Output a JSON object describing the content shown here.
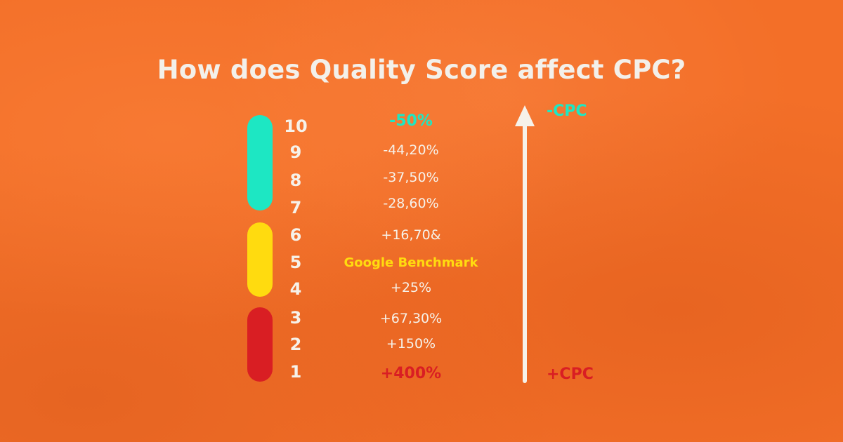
{
  "title": "How does Quality Score affect CPC?",
  "colors": {
    "background": "#f36f28",
    "green": "#1de7c3",
    "yellow": "#ffdb0f",
    "red": "#d91e23",
    "text": "#f6f2ea",
    "arrow": "#f6f2ea"
  },
  "groups": [
    {
      "name": "green-pill",
      "color": "#1de7c3",
      "scores": [
        10,
        9,
        8,
        7
      ]
    },
    {
      "name": "yellow-pill",
      "color": "#ffdb0f",
      "scores": [
        6,
        5,
        4
      ]
    },
    {
      "name": "red-pill",
      "color": "#d91e23",
      "scores": [
        3,
        2,
        1
      ]
    }
  ],
  "rows": [
    {
      "score": "10",
      "change": "-50%",
      "highlight_color": "#1de7c3"
    },
    {
      "score": "9",
      "change": "-44,20%"
    },
    {
      "score": "8",
      "change": "-37,50%"
    },
    {
      "score": "7",
      "change": "-28,60%"
    },
    {
      "score": "6",
      "change": "+16,70&"
    },
    {
      "score": "5",
      "change": "Google Benchmark",
      "highlight_color": "#ffdb0f"
    },
    {
      "score": "4",
      "change": "+25%"
    },
    {
      "score": "3",
      "change": "+67,30%"
    },
    {
      "score": "2",
      "change": "+150%"
    },
    {
      "score": "1",
      "change": "+400%",
      "highlight_color": "#d91e23"
    }
  ],
  "axis": {
    "top_label": "-CPC",
    "top_color": "#1de7c3",
    "bottom_label": "+CPC",
    "bottom_color": "#d91e23",
    "arrow_icon": "up-arrow-icon"
  }
}
